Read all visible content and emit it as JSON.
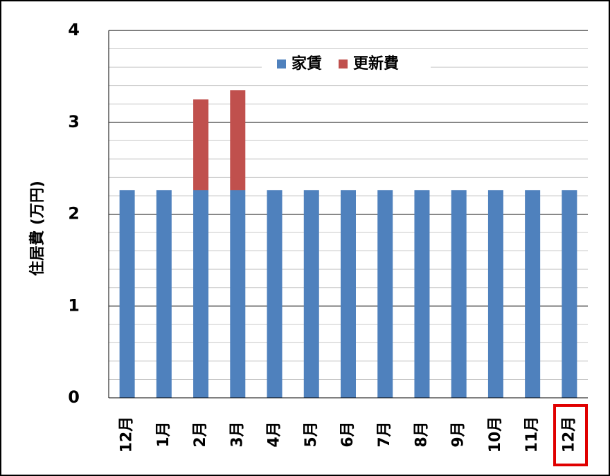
{
  "chart_data": {
    "type": "stacked_bar",
    "y_label": "住居費 (万円)",
    "categories": [
      "12月",
      "1月",
      "2月",
      "3月",
      "4月",
      "5月",
      "6月",
      "7月",
      "8月",
      "9月",
      "10月",
      "11月",
      "12月"
    ],
    "series": [
      {
        "name": "家賃",
        "color": "#4f81bd",
        "values": [
          2.26,
          2.26,
          2.26,
          2.26,
          2.26,
          2.26,
          2.26,
          2.26,
          2.26,
          2.26,
          2.26,
          2.26,
          2.26
        ]
      },
      {
        "name": "更新費",
        "color": "#c0504d",
        "values": [
          0,
          0,
          0.99,
          1.09,
          0,
          0,
          0,
          0,
          0,
          0,
          0,
          0,
          0
        ]
      }
    ],
    "ylim": [
      0,
      4
    ],
    "yticks": [
      0,
      1,
      2,
      3,
      4
    ],
    "minor_yticks": [
      0.2,
      0.4,
      0.6,
      0.8,
      1.2,
      1.4,
      1.6,
      1.8,
      2.2,
      2.4,
      2.6,
      2.8,
      3.2,
      3.4,
      3.6,
      3.8
    ],
    "grid": true,
    "legend": "top"
  }
}
